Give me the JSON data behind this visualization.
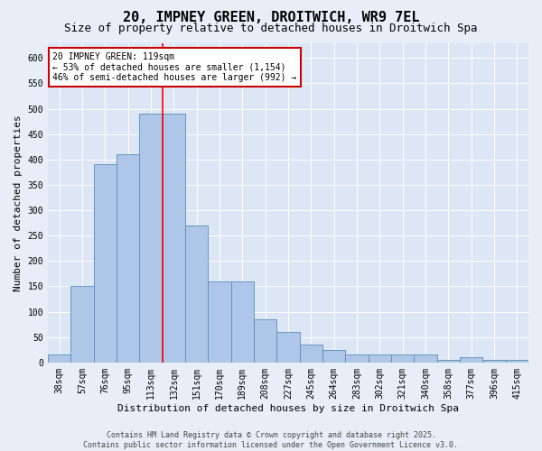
{
  "title1": "20, IMPNEY GREEN, DROITWICH, WR9 7EL",
  "title2": "Size of property relative to detached houses in Droitwich Spa",
  "xlabel": "Distribution of detached houses by size in Droitwich Spa",
  "ylabel": "Number of detached properties",
  "categories": [
    "38sqm",
    "57sqm",
    "76sqm",
    "95sqm",
    "113sqm",
    "132sqm",
    "151sqm",
    "170sqm",
    "189sqm",
    "208sqm",
    "227sqm",
    "245sqm",
    "264sqm",
    "283sqm",
    "302sqm",
    "321sqm",
    "340sqm",
    "358sqm",
    "377sqm",
    "396sqm",
    "415sqm"
  ],
  "values": [
    15,
    150,
    390,
    410,
    490,
    490,
    270,
    160,
    160,
    85,
    60,
    35,
    25,
    15,
    15,
    15,
    15,
    5,
    10,
    5,
    5
  ],
  "bar_color": "#aec6e8",
  "bar_edge_color": "#5b8db8",
  "bar_width": 1.0,
  "red_line_index": 4,
  "annotation_text": "20 IMPNEY GREEN: 119sqm\n← 53% of detached houses are smaller (1,154)\n46% of semi-detached houses are larger (992) →",
  "annotation_box_color": "#ffffff",
  "annotation_box_edge": "#cc0000",
  "ylim": [
    0,
    630
  ],
  "yticks": [
    0,
    50,
    100,
    150,
    200,
    250,
    300,
    350,
    400,
    450,
    500,
    550,
    600
  ],
  "background_color": "#e8eef7",
  "plot_background": "#dce6f5",
  "footer": "Contains HM Land Registry data © Crown copyright and database right 2025.\nContains public sector information licensed under the Open Government Licence v3.0.",
  "title1_fontsize": 11,
  "title2_fontsize": 9,
  "xlabel_fontsize": 8,
  "ylabel_fontsize": 8,
  "tick_fontsize": 7,
  "annotation_fontsize": 7,
  "footer_fontsize": 6
}
